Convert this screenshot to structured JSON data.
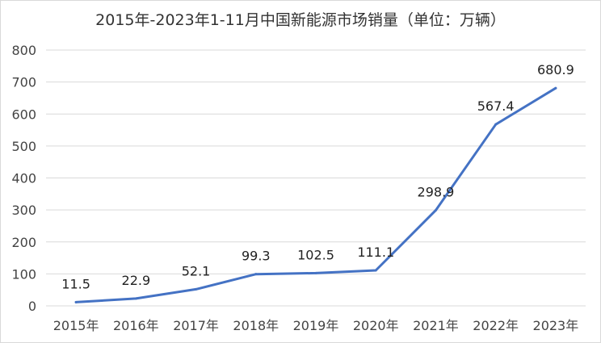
{
  "chart_data": {
    "type": "line",
    "title": "2015年-2023年1-11月中国新能源市场销量（单位：万辆）",
    "categories": [
      "2015年",
      "2016年",
      "2017年",
      "2018年",
      "2019年",
      "2020年",
      "2021年",
      "2022年",
      "2023年"
    ],
    "series": [
      {
        "values": [
          11.5,
          22.9,
          52.1,
          99.3,
          102.5,
          111.1,
          298.9,
          567.4,
          680.9
        ],
        "color": "#4472c4"
      }
    ],
    "data_labels": [
      "11.5",
      "22.9",
      "52.1",
      "99.3",
      "102.5",
      "111.1",
      "298.9",
      "567.4",
      "680.9"
    ],
    "yticks": [
      "0",
      "100",
      "200",
      "300",
      "400",
      "500",
      "600",
      "700",
      "800"
    ],
    "ylim": [
      0,
      800
    ],
    "grid": true,
    "legend": "none"
  }
}
